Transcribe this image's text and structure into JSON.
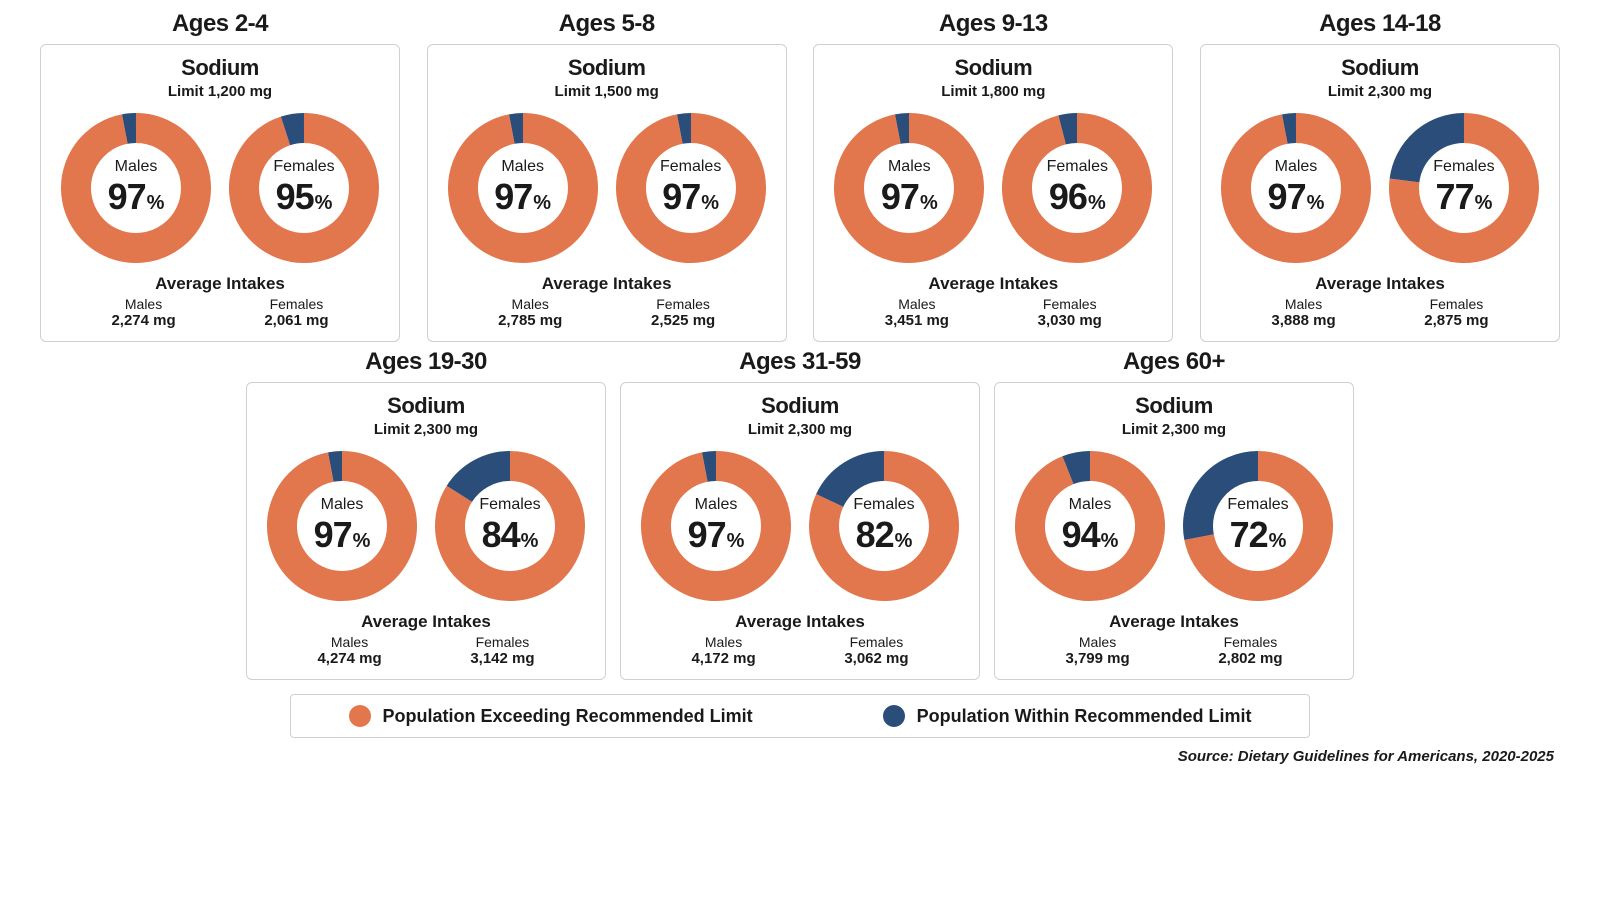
{
  "colors": {
    "exceed": "#e2764c",
    "within": "#2a4d7a",
    "border": "#d0d0d0",
    "bg": "#ffffff",
    "text": "#1a1a1a"
  },
  "donut": {
    "size": 160,
    "radius": 60,
    "stroke": 30,
    "start_angle_deg": -90
  },
  "fonts": {
    "age_title": 24,
    "nutrient": 22,
    "limit": 15,
    "gender": 16,
    "pct": 36,
    "pct_sym": 20,
    "avg_title": 17,
    "avg_gender": 14,
    "avg_val": 15,
    "legend": 18,
    "source": 15
  },
  "nutrient_label": "Sodium",
  "limit_prefix": "Limit ",
  "avg_title": "Average Intakes",
  "male_label": "Males",
  "female_label": "Females",
  "pct_symbol": "%",
  "legend": {
    "exceed": "Population Exceeding Recommended Limit",
    "within": "Population Within Recommended Limit"
  },
  "source": "Source: Dietary Guidelines for Americans, 2020-2025",
  "groups": [
    {
      "age": "Ages 2-4",
      "limit": "1,200 mg",
      "male_pct": 97,
      "female_pct": 95,
      "male_avg": "2,274 mg",
      "female_avg": "2,061 mg"
    },
    {
      "age": "Ages 5-8",
      "limit": "1,500 mg",
      "male_pct": 97,
      "female_pct": 97,
      "male_avg": "2,785 mg",
      "female_avg": "2,525 mg"
    },
    {
      "age": "Ages 9-13",
      "limit": "1,800 mg",
      "male_pct": 97,
      "female_pct": 96,
      "male_avg": "3,451 mg",
      "female_avg": "3,030 mg"
    },
    {
      "age": "Ages 14-18",
      "limit": "2,300 mg",
      "male_pct": 97,
      "female_pct": 77,
      "male_avg": "3,888 mg",
      "female_avg": "2,875 mg"
    },
    {
      "age": "Ages 19-30",
      "limit": "2,300 mg",
      "male_pct": 97,
      "female_pct": 84,
      "male_avg": "4,274 mg",
      "female_avg": "3,142 mg"
    },
    {
      "age": "Ages 31-59",
      "limit": "2,300 mg",
      "male_pct": 97,
      "female_pct": 82,
      "male_avg": "4,172 mg",
      "female_avg": "3,062 mg"
    },
    {
      "age": "Ages 60+",
      "limit": "2,300 mg",
      "male_pct": 94,
      "female_pct": 72,
      "male_avg": "3,799 mg",
      "female_avg": "2,802 mg"
    }
  ]
}
